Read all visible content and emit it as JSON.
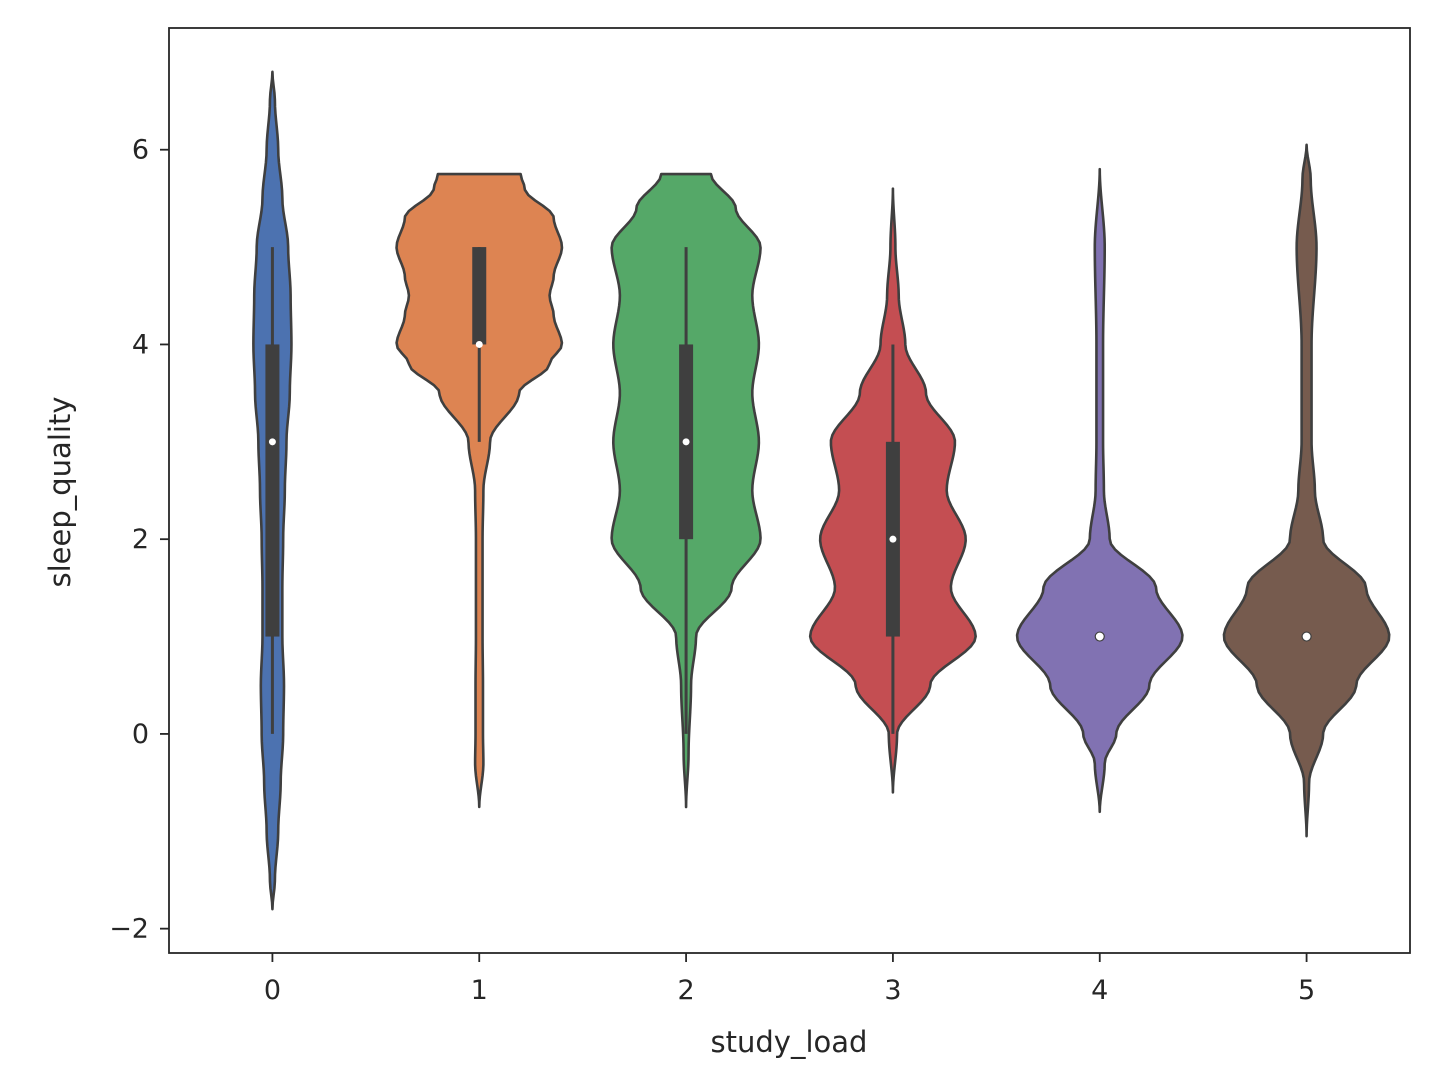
{
  "chart_data": {
    "type": "violin",
    "xlabel": "study_load",
    "ylabel": "sleep_quality",
    "categories": [
      "0",
      "1",
      "2",
      "3",
      "4",
      "5"
    ],
    "ylim": [
      -2.25,
      7.25
    ],
    "yticks": [
      -2,
      0,
      2,
      4,
      6
    ],
    "ytick_labels": [
      "−2",
      "0",
      "2",
      "4",
      "6"
    ],
    "grid": false,
    "legend": "none",
    "violins": [
      {
        "category": "0",
        "color": "#4c72b0",
        "range": [
          -1.8,
          6.8
        ],
        "density": [
          [
            -1.8,
            0.0
          ],
          [
            -1.5,
            0.03
          ],
          [
            -1.0,
            0.07
          ],
          [
            -0.5,
            0.1
          ],
          [
            0.0,
            0.13
          ],
          [
            0.5,
            0.14
          ],
          [
            1.0,
            0.12
          ],
          [
            1.5,
            0.12
          ],
          [
            2.0,
            0.13
          ],
          [
            2.5,
            0.15
          ],
          [
            3.0,
            0.17
          ],
          [
            3.5,
            0.21
          ],
          [
            4.0,
            0.23
          ],
          [
            4.5,
            0.22
          ],
          [
            5.0,
            0.19
          ],
          [
            5.5,
            0.12
          ],
          [
            6.0,
            0.07
          ],
          [
            6.5,
            0.03
          ],
          [
            6.8,
            0.0
          ]
        ],
        "q1": 1.0,
        "median": 3.0,
        "q3": 4.0,
        "whisker_low": 0.0,
        "whisker_high": 5.0
      },
      {
        "category": "1",
        "color": "#dd8452",
        "range": [
          -0.75,
          5.75
        ],
        "density": [
          [
            -0.75,
            0.0
          ],
          [
            -0.3,
            0.05
          ],
          [
            0.0,
            0.045
          ],
          [
            0.5,
            0.045
          ],
          [
            1.0,
            0.04
          ],
          [
            1.5,
            0.04
          ],
          [
            2.0,
            0.04
          ],
          [
            2.5,
            0.05
          ],
          [
            3.0,
            0.13
          ],
          [
            3.5,
            0.48
          ],
          [
            3.8,
            0.85
          ],
          [
            4.0,
            1.0
          ],
          [
            4.3,
            0.9
          ],
          [
            4.5,
            0.85
          ],
          [
            4.7,
            0.9
          ],
          [
            5.0,
            1.0
          ],
          [
            5.3,
            0.9
          ],
          [
            5.6,
            0.55
          ],
          [
            5.75,
            0.5
          ]
        ],
        "q1": 4.0,
        "median": 4.0,
        "q3": 5.0,
        "whisker_low": 3.0,
        "whisker_high": 5.0
      },
      {
        "category": "2",
        "color": "#55a868",
        "range": [
          -0.75,
          5.75
        ],
        "density": [
          [
            -0.75,
            0.0
          ],
          [
            -0.2,
            0.03
          ],
          [
            0.5,
            0.06
          ],
          [
            1.0,
            0.12
          ],
          [
            1.5,
            0.55
          ],
          [
            2.0,
            0.9
          ],
          [
            2.5,
            0.8
          ],
          [
            3.0,
            0.88
          ],
          [
            3.5,
            0.8
          ],
          [
            4.0,
            0.88
          ],
          [
            4.5,
            0.8
          ],
          [
            5.0,
            0.9
          ],
          [
            5.4,
            0.6
          ],
          [
            5.75,
            0.3
          ]
        ],
        "q1": 2.0,
        "median": 3.0,
        "q3": 4.0,
        "whisker_low": 0.0,
        "whisker_high": 5.0
      },
      {
        "category": "3",
        "color": "#c44e52",
        "range": [
          -0.6,
          5.6
        ],
        "density": [
          [
            -0.6,
            0.0
          ],
          [
            0.0,
            0.05
          ],
          [
            0.5,
            0.45
          ],
          [
            1.0,
            1.0
          ],
          [
            1.5,
            0.7
          ],
          [
            2.0,
            0.88
          ],
          [
            2.5,
            0.65
          ],
          [
            3.0,
            0.75
          ],
          [
            3.5,
            0.4
          ],
          [
            4.0,
            0.15
          ],
          [
            4.5,
            0.07
          ],
          [
            5.0,
            0.03
          ],
          [
            5.6,
            0.0
          ]
        ],
        "q1": 1.0,
        "median": 2.0,
        "q3": 3.0,
        "whisker_low": 0.0,
        "whisker_high": 4.0
      },
      {
        "category": "4",
        "color": "#8172b2",
        "range": [
          -0.8,
          5.8
        ],
        "density": [
          [
            -0.8,
            0.0
          ],
          [
            -0.3,
            0.06
          ],
          [
            0.0,
            0.2
          ],
          [
            0.5,
            0.6
          ],
          [
            1.0,
            1.0
          ],
          [
            1.5,
            0.68
          ],
          [
            2.0,
            0.12
          ],
          [
            2.5,
            0.05
          ],
          [
            3.0,
            0.04
          ],
          [
            4.0,
            0.04
          ],
          [
            5.0,
            0.06
          ],
          [
            5.8,
            0.0
          ]
        ],
        "q1": 1.0,
        "median": 1.0,
        "q3": 1.0,
        "whisker_low": 1.0,
        "whisker_high": 1.0
      },
      {
        "category": "5",
        "color": "#765b4e",
        "range": [
          -1.05,
          6.05
        ],
        "density": [
          [
            -1.05,
            0.0
          ],
          [
            -0.5,
            0.03
          ],
          [
            0.0,
            0.2
          ],
          [
            0.5,
            0.6
          ],
          [
            1.0,
            1.0
          ],
          [
            1.5,
            0.72
          ],
          [
            2.0,
            0.2
          ],
          [
            2.5,
            0.1
          ],
          [
            3.0,
            0.06
          ],
          [
            4.0,
            0.06
          ],
          [
            5.0,
            0.12
          ],
          [
            5.7,
            0.05
          ],
          [
            6.05,
            0.0
          ]
        ],
        "q1": 1.0,
        "median": 1.0,
        "q3": 1.0,
        "whisker_low": 1.0,
        "whisker_high": 1.0
      }
    ]
  }
}
